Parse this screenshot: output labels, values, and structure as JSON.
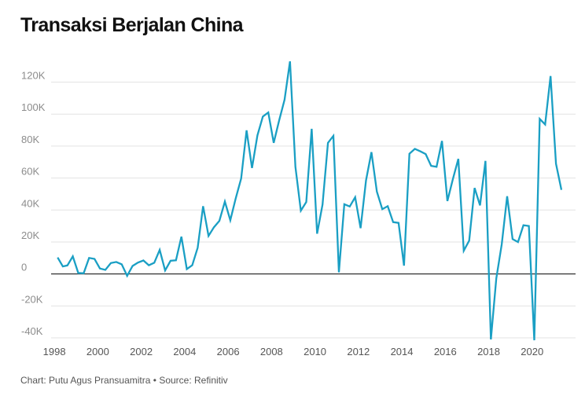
{
  "title": "Transaksi Berjalan China",
  "footer": {
    "credit": "Chart: Putu Agus Pransuamitra",
    "separator": "•",
    "source": "Source: Refinitiv"
  },
  "chart_data": {
    "type": "line",
    "title": "Transaksi Berjalan China",
    "xlabel": "",
    "ylabel": "",
    "grid": true,
    "legend": "none",
    "xlim": [
      1997.85,
      2022.0
    ],
    "ylim": [
      -40000,
      135000
    ],
    "x_ticks": [
      1998,
      2000,
      2002,
      2004,
      2006,
      2008,
      2010,
      2012,
      2014,
      2016,
      2018,
      2020
    ],
    "y_ticks": [
      {
        "value": 120000,
        "label": "120K"
      },
      {
        "value": 100000,
        "label": "100K"
      },
      {
        "value": 80000,
        "label": "80K"
      },
      {
        "value": 60000,
        "label": "60K"
      },
      {
        "value": 40000,
        "label": "40K"
      },
      {
        "value": 20000,
        "label": "20K"
      },
      {
        "value": 0,
        "label": "0"
      },
      {
        "value": -20000,
        "label": "-20K"
      },
      {
        "value": -40000,
        "label": "-40K"
      }
    ],
    "series": [
      {
        "color": "#1a9fc4",
        "points": [
          [
            1998.15,
            10300
          ],
          [
            1998.39,
            4700
          ],
          [
            1998.6,
            5300
          ],
          [
            1998.85,
            11000
          ],
          [
            1999.1,
            600
          ],
          [
            1999.35,
            400
          ],
          [
            1999.6,
            10000
          ],
          [
            1999.85,
            9400
          ],
          [
            2000.1,
            3400
          ],
          [
            2000.35,
            2500
          ],
          [
            2000.6,
            6800
          ],
          [
            2000.85,
            7500
          ],
          [
            2001.1,
            6000
          ],
          [
            2001.35,
            -1200
          ],
          [
            2001.6,
            5000
          ],
          [
            2001.85,
            7100
          ],
          [
            2002.1,
            8400
          ],
          [
            2002.35,
            5400
          ],
          [
            2002.6,
            7000
          ],
          [
            2002.85,
            15000
          ],
          [
            2003.1,
            2200
          ],
          [
            2003.35,
            8200
          ],
          [
            2003.6,
            8500
          ],
          [
            2003.85,
            23300
          ],
          [
            2004.1,
            3000
          ],
          [
            2004.35,
            5400
          ],
          [
            2004.6,
            16400
          ],
          [
            2004.85,
            42400
          ],
          [
            2005.1,
            23800
          ],
          [
            2005.35,
            29200
          ],
          [
            2005.6,
            33200
          ],
          [
            2005.85,
            45300
          ],
          [
            2006.1,
            33600
          ],
          [
            2006.35,
            47300
          ],
          [
            2006.6,
            59700
          ],
          [
            2006.85,
            89800
          ],
          [
            2007.1,
            66300
          ],
          [
            2007.35,
            86700
          ],
          [
            2007.6,
            98500
          ],
          [
            2007.85,
            101000
          ],
          [
            2008.1,
            82000
          ],
          [
            2008.35,
            96000
          ],
          [
            2008.6,
            109000
          ],
          [
            2008.85,
            133000
          ],
          [
            2009.1,
            67000
          ],
          [
            2009.35,
            39600
          ],
          [
            2009.6,
            45000
          ],
          [
            2009.85,
            90800
          ],
          [
            2010.1,
            25200
          ],
          [
            2010.35,
            43400
          ],
          [
            2010.6,
            82000
          ],
          [
            2010.85,
            86400
          ],
          [
            2011.1,
            1000
          ],
          [
            2011.35,
            43600
          ],
          [
            2011.6,
            42200
          ],
          [
            2011.85,
            48000
          ],
          [
            2012.1,
            28600
          ],
          [
            2012.35,
            58500
          ],
          [
            2012.6,
            76200
          ],
          [
            2012.85,
            51500
          ],
          [
            2013.1,
            40500
          ],
          [
            2013.35,
            42400
          ],
          [
            2013.6,
            32400
          ],
          [
            2013.85,
            31900
          ],
          [
            2014.1,
            5200
          ],
          [
            2014.35,
            75200
          ],
          [
            2014.6,
            78200
          ],
          [
            2014.85,
            76700
          ],
          [
            2015.1,
            75000
          ],
          [
            2015.35,
            67600
          ],
          [
            2015.6,
            67000
          ],
          [
            2015.85,
            83200
          ],
          [
            2016.1,
            45600
          ],
          [
            2016.35,
            59400
          ],
          [
            2016.6,
            72000
          ],
          [
            2016.85,
            14500
          ],
          [
            2017.1,
            20800
          ],
          [
            2017.35,
            53800
          ],
          [
            2017.6,
            42900
          ],
          [
            2017.85,
            70700
          ],
          [
            2018.1,
            -41000
          ],
          [
            2018.35,
            -2800
          ],
          [
            2018.6,
            18500
          ],
          [
            2018.85,
            48600
          ],
          [
            2019.1,
            21800
          ],
          [
            2019.35,
            19900
          ],
          [
            2019.6,
            30500
          ],
          [
            2019.85,
            30000
          ],
          [
            2020.1,
            -41500
          ],
          [
            2020.35,
            97000
          ],
          [
            2020.6,
            93500
          ],
          [
            2020.85,
            123800
          ],
          [
            2021.1,
            69000
          ],
          [
            2021.35,
            52600
          ]
        ]
      }
    ]
  }
}
